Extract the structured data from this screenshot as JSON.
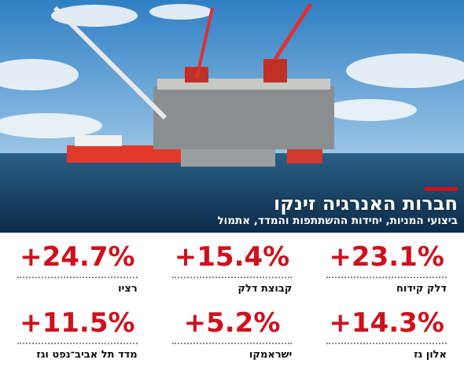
{
  "header": {
    "title": "חברות האנרגיה זינקו",
    "subtitle": "ביצועי המניות, יחידות ההשתתפות והמדד, אתמול"
  },
  "items": [
    {
      "value": "+23.1%",
      "label": "דלק קידוח"
    },
    {
      "value": "+15.4%",
      "label": "קבוצת דלק"
    },
    {
      "value": "+24.7%",
      "label": "רציו"
    },
    {
      "value": "+14.3%",
      "label": "אלון גז"
    },
    {
      "value": "+5.2%",
      "label": "ישראמקו"
    },
    {
      "value": "+11.5%",
      "label": "מדד תל אביב־נפט וגז"
    }
  ]
}
